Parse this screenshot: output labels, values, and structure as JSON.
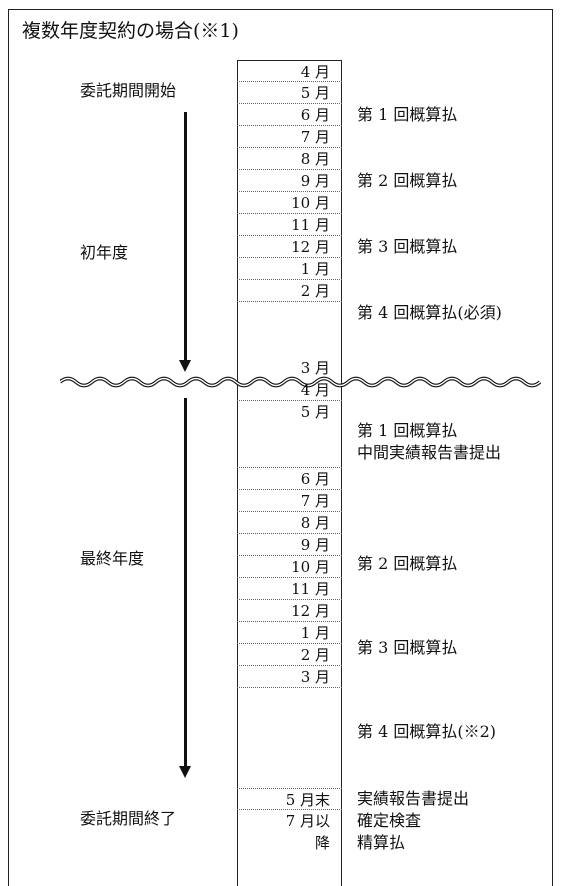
{
  "title": "複数年度契約の場合(※1)",
  "first_year": {
    "start_label": "委託期間開始",
    "label": "初年度",
    "months": [
      {
        "month": "4 月",
        "note": ""
      },
      {
        "month": "5 月",
        "note": "第 1 回概算払"
      },
      {
        "month": "6 月",
        "note": ""
      },
      {
        "month": "7 月",
        "note": ""
      },
      {
        "month": "8 月",
        "note": "第 2 回概算払"
      },
      {
        "month": "9 月",
        "note": ""
      },
      {
        "month": "10 月",
        "note": ""
      },
      {
        "month": "11 月",
        "note": "第 3 回概算払"
      },
      {
        "month": "12 月",
        "note": ""
      },
      {
        "month": "1 月",
        "note": ""
      },
      {
        "month": "2 月",
        "note": "第 4 回概算払(必須)"
      },
      {
        "month": "3 月",
        "note": ""
      }
    ]
  },
  "final_year": {
    "label": "最終年度",
    "end_label": "委託期間終了",
    "months": [
      {
        "month": "4 月",
        "note": ""
      },
      {
        "month": "5 月",
        "note": "第 1 回概算払",
        "note2": "中間実績報告書提出"
      },
      {
        "month": "6 月",
        "note": ""
      },
      {
        "month": "7 月",
        "note": ""
      },
      {
        "month": "8 月",
        "note": "第 2 回概算払"
      },
      {
        "month": "9 月",
        "note": ""
      },
      {
        "month": "10 月",
        "note": ""
      },
      {
        "month": "11 月",
        "note": "第 3 回概算払"
      },
      {
        "month": "12 月",
        "note": ""
      },
      {
        "month": "1 月",
        "note": ""
      },
      {
        "month": "2 月",
        "note": "第 4 回概算払(※2)"
      },
      {
        "month": "3 月",
        "note": ""
      }
    ]
  },
  "after": [
    {
      "month": "5 月末",
      "note": "実績報告書提出"
    },
    {
      "month_line1": "7 月以",
      "month_line2": "降",
      "note": "確定検査",
      "note2": "精算払"
    }
  ]
}
